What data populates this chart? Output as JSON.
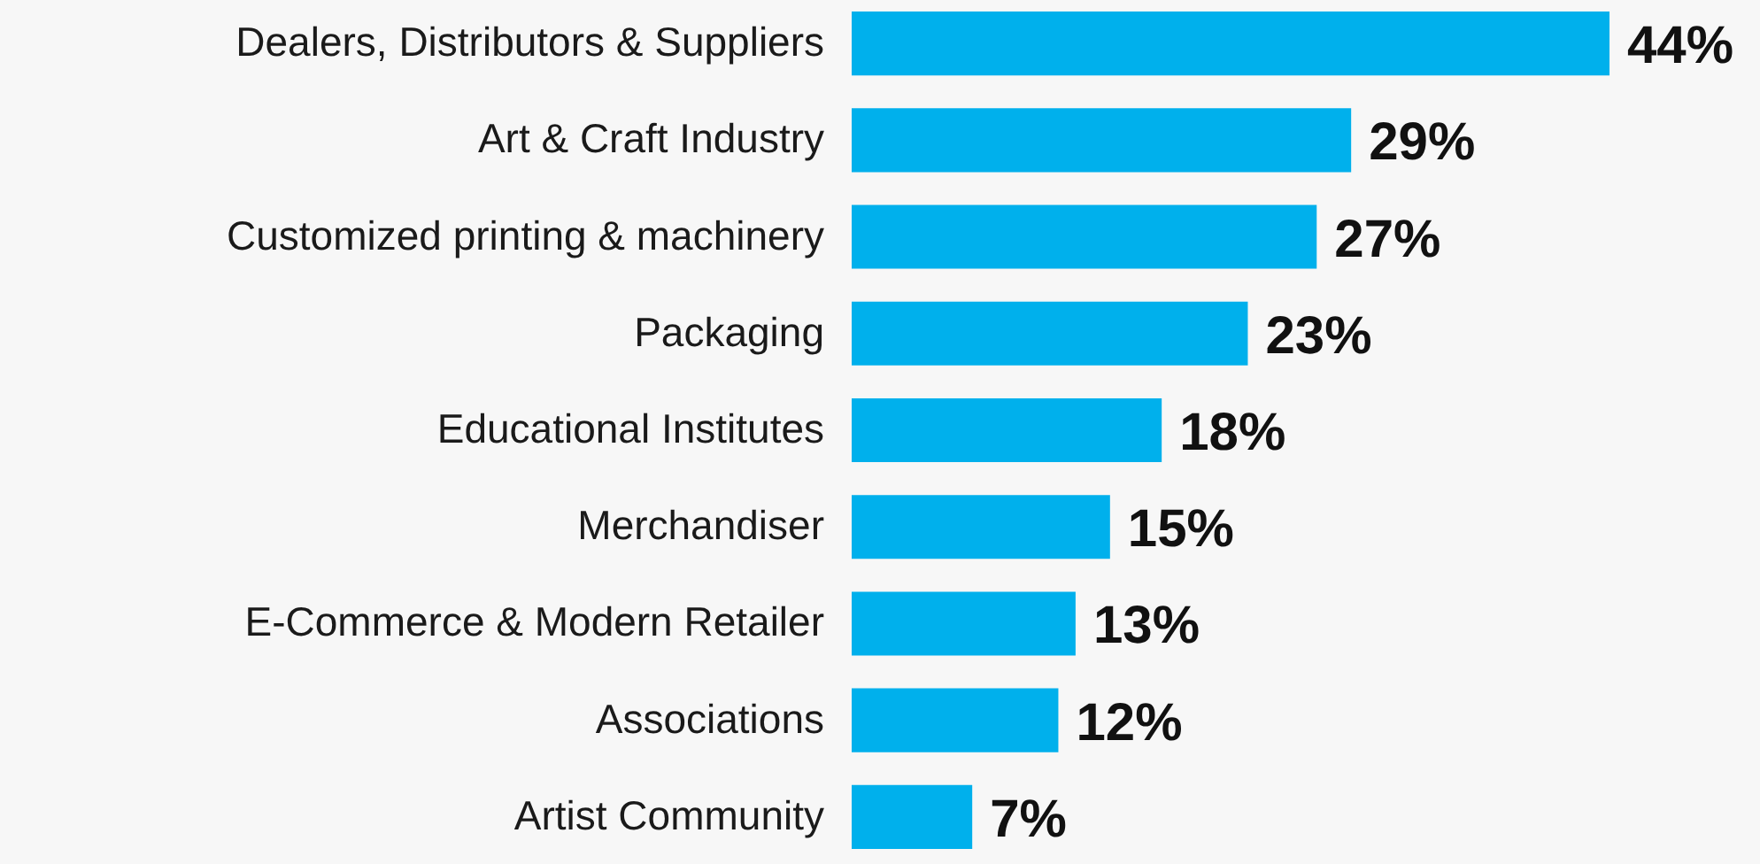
{
  "chart_data": {
    "type": "bar",
    "orientation": "horizontal",
    "categories": [
      "Dealers, Distributors & Suppliers",
      "Art & Craft Industry",
      "Customized printing & machinery",
      "Packaging",
      "Educational Institutes",
      "Merchandiser",
      "E-Commerce & Modern Retailer",
      "Associations",
      "Artist Community"
    ],
    "values": [
      44,
      29,
      27,
      23,
      18,
      15,
      13,
      12,
      7
    ],
    "value_labels": [
      "44%",
      "29%",
      "27%",
      "23%",
      "18%",
      "15%",
      "13%",
      "12%",
      "7%"
    ],
    "color": "#00b0ec",
    "xlim": [
      0,
      44
    ],
    "tick_labels": "y"
  }
}
